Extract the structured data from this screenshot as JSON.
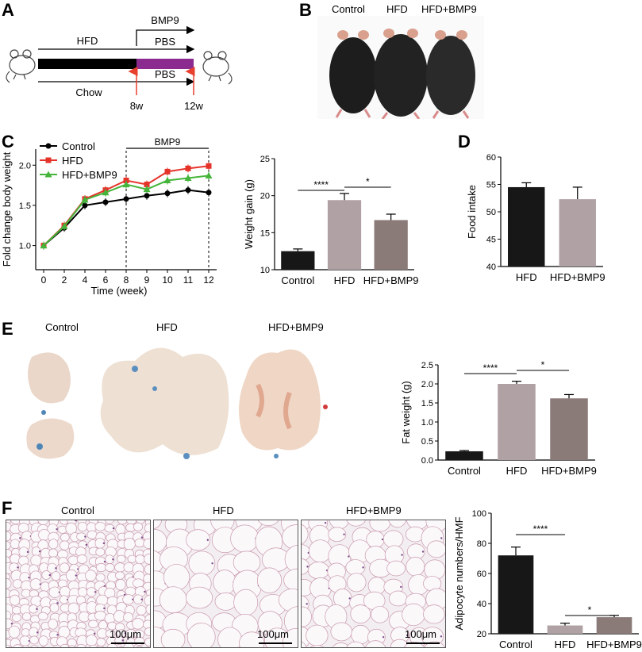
{
  "panels": {
    "A": {
      "letter": "A",
      "labels": {
        "bmp9": "BMP9",
        "hfd": "HFD",
        "pbs_top": "PBS",
        "pbs_bottom": "PBS",
        "chow": "Chow",
        "t8": "8w",
        "t12": "12w"
      },
      "colors": {
        "black_bar": "#000000",
        "purple_bar": "#8b2a8f",
        "arrow": "#e8402f"
      }
    },
    "B": {
      "letter": "B",
      "labels": [
        "Control",
        "HFD",
        "HFD+BMP9"
      ]
    },
    "C": {
      "letter": "C"
    },
    "D": {
      "letter": "D"
    },
    "E": {
      "letter": "E",
      "labels": [
        "Control",
        "HFD",
        "HFD+BMP9"
      ]
    },
    "F": {
      "letter": "F",
      "labels": [
        "Control",
        "HFD",
        "HFD+BMP9"
      ],
      "scale": "100μm"
    }
  },
  "chart_data": [
    {
      "id": "fold-change",
      "type": "line",
      "x": [
        0,
        2,
        4,
        6,
        8,
        9,
        10,
        11,
        12
      ],
      "xticks": [
        "0",
        "2",
        "4",
        "6",
        "8",
        "9",
        "10",
        "11",
        "12"
      ],
      "yticks": [
        "1.0",
        "1.5",
        "2.0"
      ],
      "ylim": [
        0.7,
        2.2
      ],
      "xlabel": "Time (week)",
      "ylabel": "Fold change body weight",
      "annotation": "BMP9",
      "series": [
        {
          "name": "Control",
          "color": "#000000",
          "marker": "circle",
          "values": [
            1.0,
            1.22,
            1.5,
            1.54,
            1.58,
            1.62,
            1.65,
            1.69,
            1.66
          ]
        },
        {
          "name": "HFD",
          "color": "#e5332a",
          "marker": "square",
          "values": [
            1.0,
            1.25,
            1.58,
            1.69,
            1.81,
            1.76,
            1.92,
            1.96,
            1.99
          ]
        },
        {
          "name": "HFD+BMP9",
          "color": "#44b53a",
          "marker": "triangle",
          "values": [
            1.0,
            1.24,
            1.57,
            1.66,
            1.76,
            1.7,
            1.81,
            1.84,
            1.87
          ]
        }
      ]
    },
    {
      "id": "weight-gain",
      "type": "bar",
      "categories": [
        "Control",
        "HFD",
        "HFD+BMP9"
      ],
      "values": [
        12.5,
        19.4,
        16.7
      ],
      "errors": [
        0.3,
        0.9,
        0.8
      ],
      "colors": [
        "#171717",
        "#b0a2a4",
        "#8a7b79"
      ],
      "ylabel": "Weight gain (g)",
      "ylim": [
        10,
        25
      ],
      "yticks": [
        "10",
        "15",
        "20",
        "25"
      ],
      "significance": [
        {
          "from": 0,
          "to": 1,
          "text": "****"
        },
        {
          "from": 1,
          "to": 2,
          "text": "*"
        }
      ]
    },
    {
      "id": "food-intake",
      "type": "bar",
      "categories": [
        "HFD",
        "HFD+BMP9"
      ],
      "values": [
        54.5,
        52.3
      ],
      "errors": [
        0.8,
        2.2
      ],
      "colors": [
        "#171717",
        "#b0a2a4"
      ],
      "ylabel": "Food intake",
      "ylim": [
        40,
        60
      ],
      "yticks": [
        "40",
        "45",
        "50",
        "55",
        "60"
      ]
    },
    {
      "id": "fat-weight",
      "type": "bar",
      "categories": [
        "Control",
        "HFD",
        "HFD+BMP9"
      ],
      "values": [
        0.23,
        2.0,
        1.62
      ],
      "errors": [
        0.02,
        0.07,
        0.1
      ],
      "colors": [
        "#171717",
        "#b0a2a4",
        "#8a7b79"
      ],
      "ylabel": "Fat weight (g)",
      "ylim": [
        0,
        2.5
      ],
      "yticks": [
        "0.0",
        "0.5",
        "1.0",
        "1.5",
        "2.0",
        "2.5"
      ],
      "significance": [
        {
          "from": 0,
          "to": 1,
          "text": "****"
        },
        {
          "from": 1,
          "to": 2,
          "text": "*"
        }
      ]
    },
    {
      "id": "adipocyte",
      "type": "bar",
      "categories": [
        "Control",
        "HFD",
        "HFD+BMP9"
      ],
      "values": [
        72,
        25.5,
        31
      ],
      "errors": [
        5.5,
        1.5,
        1.2
      ],
      "colors": [
        "#171717",
        "#b0a2a4",
        "#8a7b79"
      ],
      "ylabel": "Adipocyte numbers/HMF",
      "ylim": [
        20,
        100
      ],
      "yticks": [
        "20",
        "40",
        "60",
        "80",
        "100"
      ],
      "significance": [
        {
          "from": 0,
          "to": 1,
          "text": "****"
        },
        {
          "from": 1,
          "to": 2,
          "text": "*"
        }
      ]
    }
  ]
}
